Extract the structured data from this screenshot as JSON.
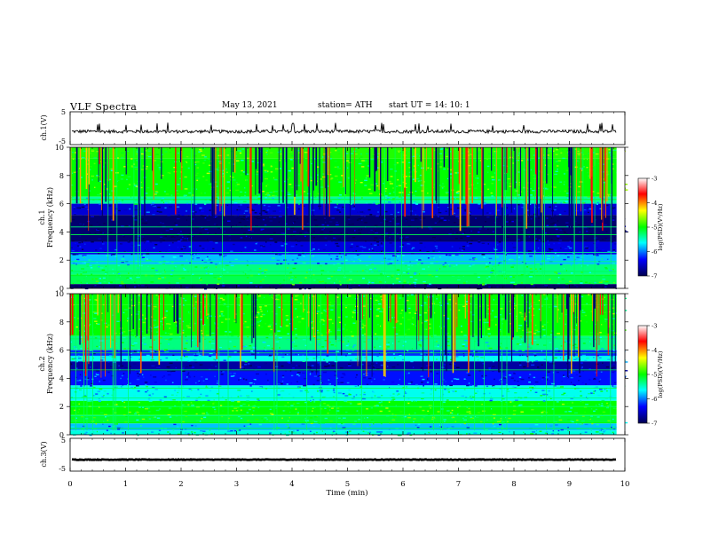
{
  "header": {
    "title": "VLF  Spectra",
    "date": "May 13, 2021",
    "station": "station= ATH",
    "start": "start  UT  =    14: 10: 1"
  },
  "chart_data": [
    {
      "type": "line",
      "name": "ch1-waveform",
      "ylabel": "ch.1(V)",
      "ylim": [
        -5,
        5
      ],
      "yticks": [
        "5",
        "-5"
      ],
      "xlim": [
        0,
        10
      ],
      "trace_level": -1,
      "trace_noise": 0.5
    },
    {
      "type": "heatmap",
      "name": "ch1-spectrogram",
      "ylabel_line1": "ch.1",
      "ylabel_line2": "Frequency  (kHz)",
      "ylim": [
        0,
        10
      ],
      "yticks": [
        "0",
        "2",
        "4",
        "6",
        "8",
        "10"
      ],
      "xlim": [
        0,
        10
      ],
      "colorbar": {
        "label": "log(PSD)(V²/Hz)",
        "range": [
          -7,
          -3
        ],
        "ticks": [
          "-3",
          "-4",
          "-5",
          "-6",
          "-7"
        ]
      }
    },
    {
      "type": "heatmap",
      "name": "ch2-spectrogram",
      "ylabel_line1": "ch.2",
      "ylabel_line2": "Frequency  (kHz)",
      "ylim": [
        0,
        10
      ],
      "yticks": [
        "0",
        "2",
        "4",
        "6",
        "8",
        "10"
      ],
      "xlim": [
        0,
        10
      ],
      "colorbar": {
        "label": "log(PSD)(V²/Hz)",
        "range": [
          -7,
          -3
        ],
        "ticks": [
          "-3",
          "-4",
          "-5",
          "-6",
          "-7"
        ]
      }
    },
    {
      "type": "line",
      "name": "ch3-waveform",
      "ylabel": "ch.3(V)",
      "ylim": [
        -5,
        5
      ],
      "yticks": [
        "5",
        "-5"
      ],
      "xlim": [
        0,
        10
      ],
      "trace_level": -1.5,
      "trace_noise": 0.1
    }
  ],
  "xaxis": {
    "label": "Time  (min)",
    "ticks": [
      "0",
      "1",
      "2",
      "3",
      "4",
      "5",
      "6",
      "7",
      "8",
      "9",
      "10"
    ]
  },
  "colors": {
    "colormap": [
      "#000050",
      "#0000ff",
      "#00ffff",
      "#00ff00",
      "#ffff00",
      "#ff0000",
      "#ffffff"
    ]
  }
}
